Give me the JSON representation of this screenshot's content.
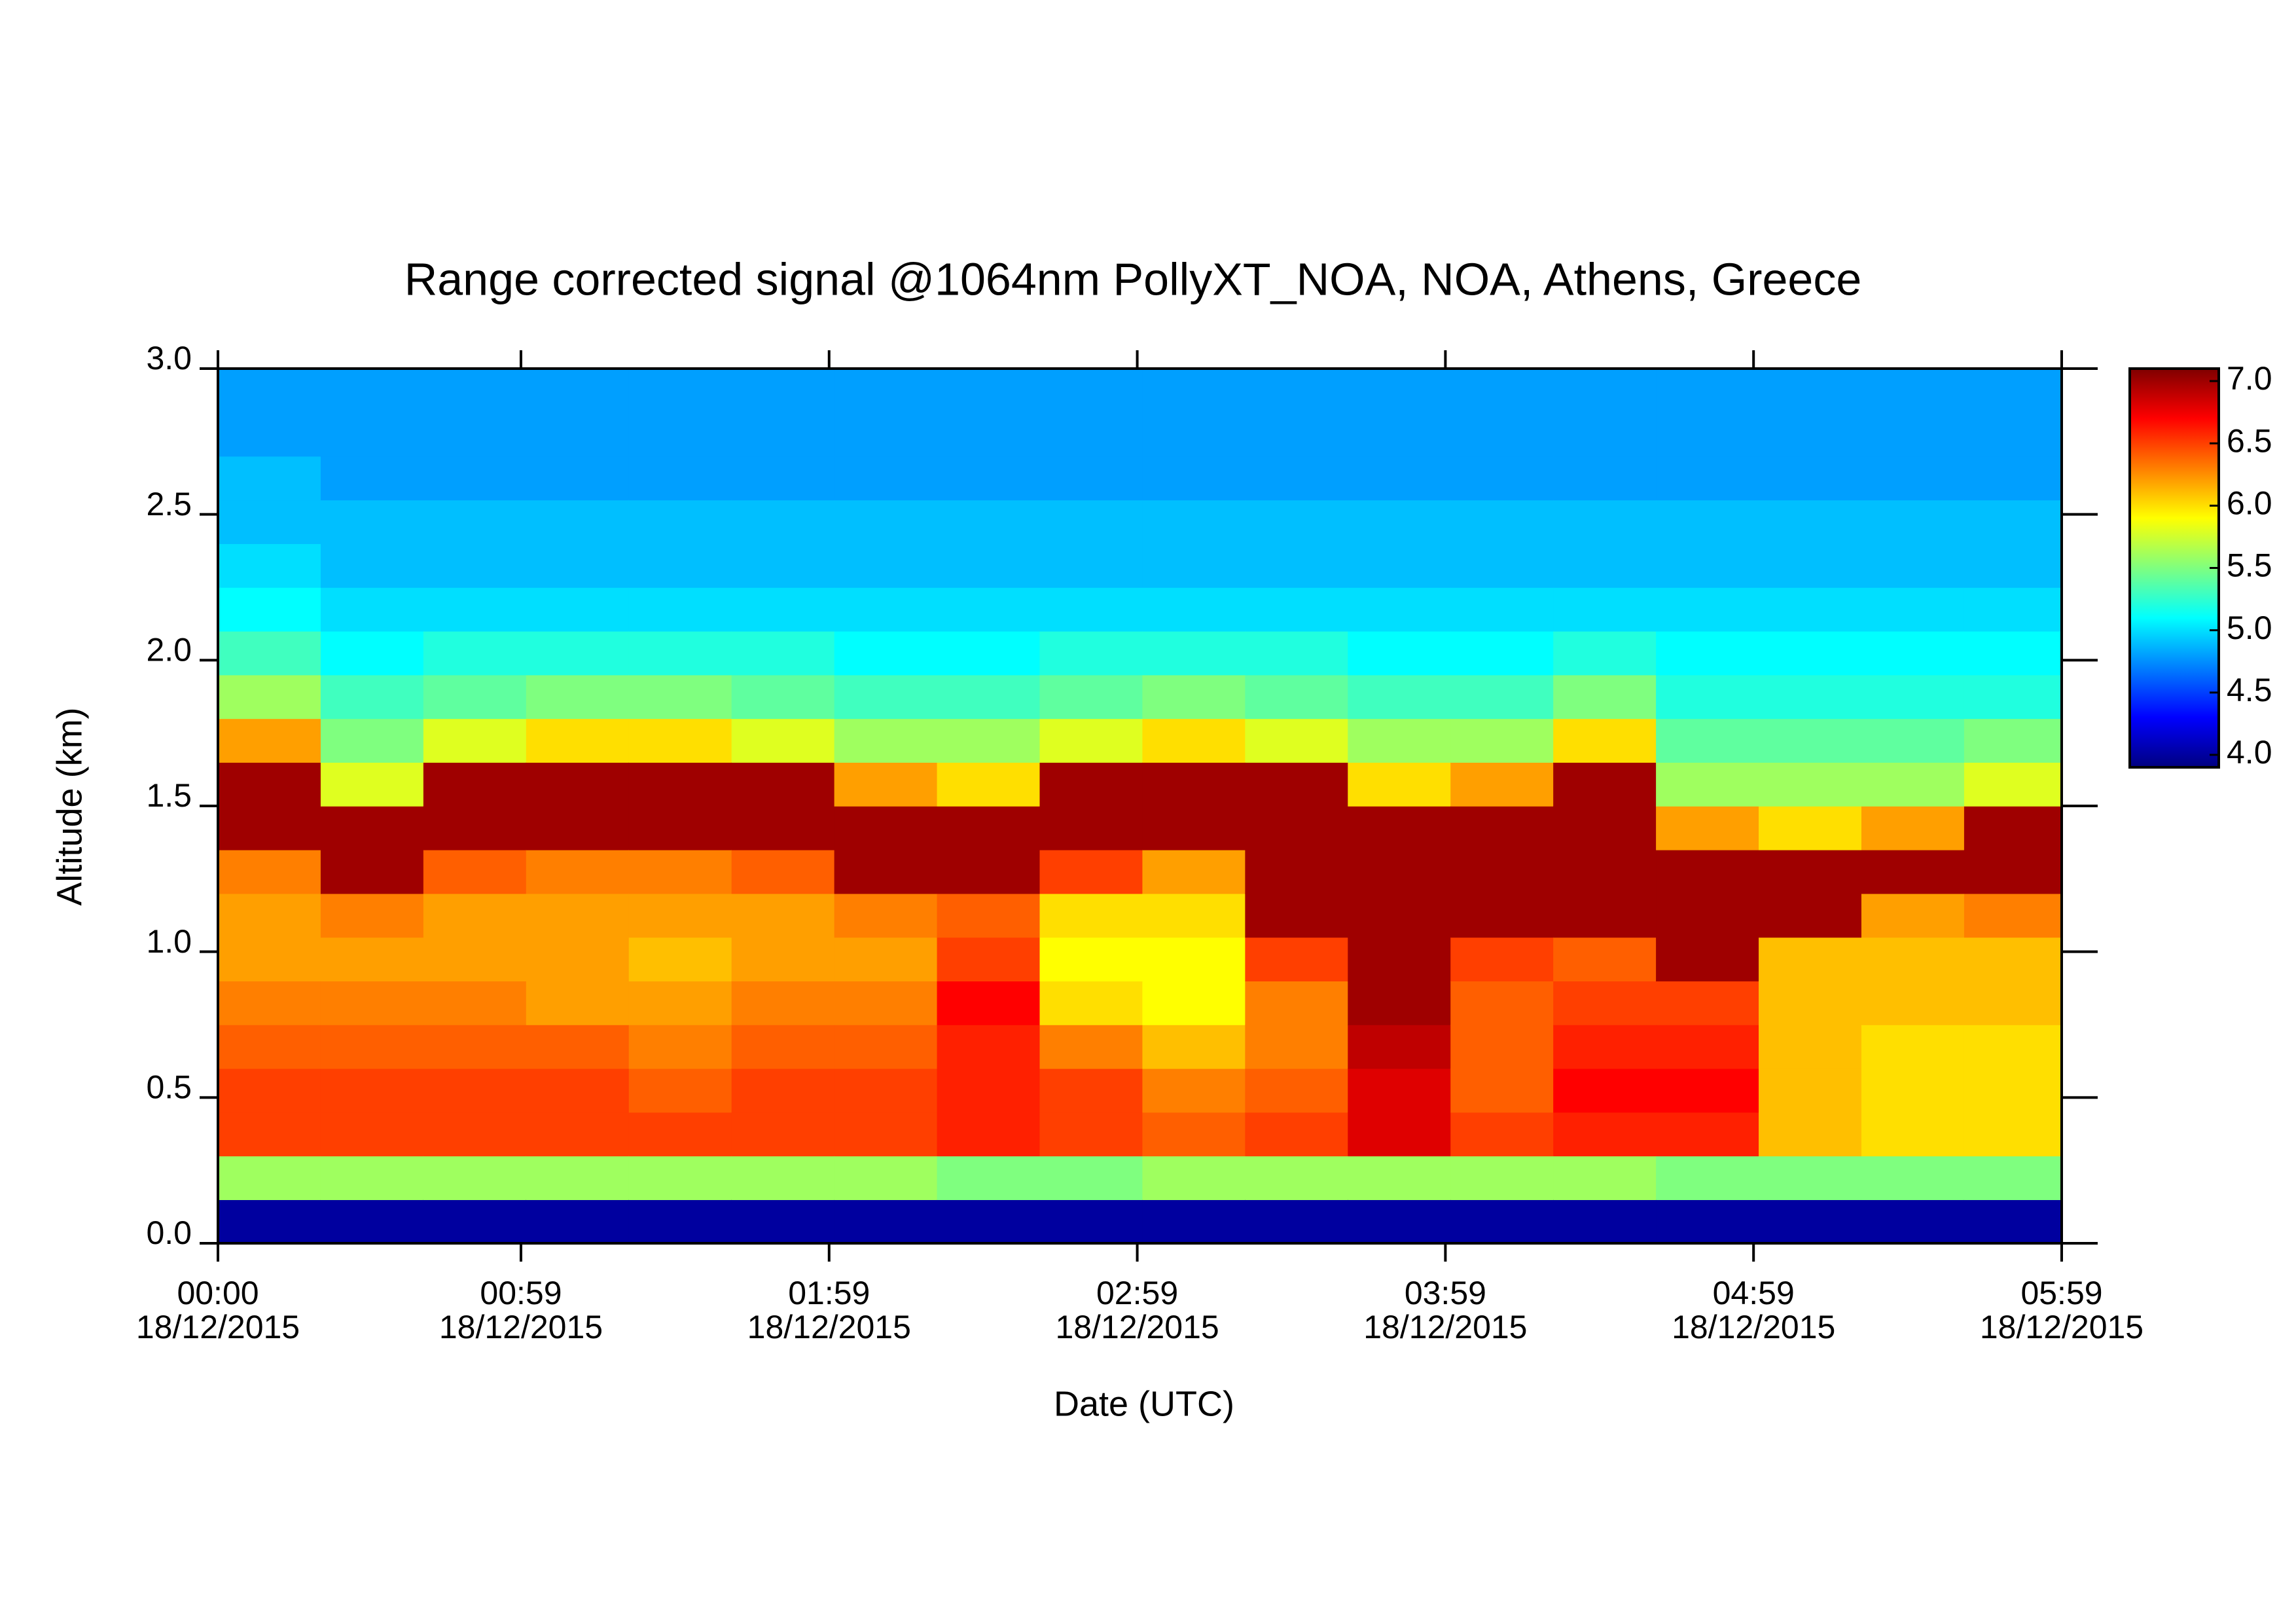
{
  "chart_data": {
    "type": "heatmap",
    "title": "Range corrected signal @1064nm  PollyXT_NOA, NOA, Athens, Greece",
    "x_label": "Date (UTC)",
    "y_label": "Altitude (km)",
    "x": [
      "00:00",
      "00:20",
      "00:40",
      "01:00",
      "01:20",
      "01:40",
      "02:00",
      "02:20",
      "02:40",
      "03:00",
      "03:20",
      "03:40",
      "04:00",
      "04:20",
      "04:40",
      "05:00",
      "05:20",
      "05:40"
    ],
    "y": [
      0,
      0.15,
      0.3,
      0.45,
      0.6,
      0.75,
      0.9,
      1.05,
      1.2,
      1.35,
      1.5,
      1.65,
      1.8,
      1.95,
      2.1,
      2.25,
      2.4,
      2.55,
      2.7,
      2.85
    ],
    "values": [
      [
        4.0,
        5.6,
        6.5,
        6.5,
        6.4,
        6.3,
        6.2,
        6.2,
        6.3,
        7.0,
        7.0,
        6.2,
        5.6,
        5.3,
        5.1,
        5.0,
        4.9,
        4.9,
        4.8,
        4.8
      ],
      [
        4.0,
        5.6,
        6.5,
        6.5,
        6.4,
        6.3,
        6.2,
        6.3,
        7.0,
        7.0,
        5.8,
        5.5,
        5.3,
        5.1,
        5.0,
        4.9,
        4.9,
        4.8,
        4.8,
        4.8
      ],
      [
        4.0,
        5.6,
        6.5,
        6.5,
        6.4,
        6.3,
        6.2,
        6.2,
        6.4,
        7.0,
        7.0,
        5.8,
        5.4,
        5.2,
        5.0,
        4.9,
        4.9,
        4.8,
        4.8,
        4.8
      ],
      [
        4.0,
        5.6,
        6.5,
        6.5,
        6.4,
        6.2,
        6.2,
        6.2,
        6.3,
        7.0,
        7.0,
        6.0,
        5.5,
        5.2,
        5.0,
        4.9,
        4.9,
        4.8,
        4.8,
        4.8
      ],
      [
        4.0,
        5.6,
        6.5,
        6.4,
        6.3,
        6.2,
        6.1,
        6.2,
        6.3,
        7.0,
        7.0,
        6.0,
        5.5,
        5.2,
        5.0,
        4.9,
        4.9,
        4.8,
        4.8,
        4.8
      ],
      [
        4.0,
        5.6,
        6.5,
        6.5,
        6.4,
        6.3,
        6.2,
        6.2,
        6.4,
        7.0,
        7.0,
        5.8,
        5.4,
        5.2,
        5.0,
        4.9,
        4.9,
        4.8,
        4.8,
        4.8
      ],
      [
        4.0,
        5.6,
        6.5,
        6.5,
        6.4,
        6.3,
        6.2,
        6.3,
        7.0,
        7.0,
        6.2,
        5.6,
        5.3,
        5.1,
        5.0,
        4.9,
        4.9,
        4.8,
        4.8,
        4.8
      ],
      [
        4.0,
        5.5,
        6.6,
        6.6,
        6.6,
        6.7,
        6.5,
        6.4,
        7.0,
        7.0,
        6.0,
        5.6,
        5.3,
        5.1,
        5.0,
        4.9,
        4.9,
        4.8,
        4.8,
        4.8
      ],
      [
        4.0,
        5.5,
        6.5,
        6.5,
        6.3,
        6.0,
        5.9,
        6.0,
        6.5,
        7.0,
        7.0,
        5.8,
        5.4,
        5.2,
        5.0,
        4.9,
        4.9,
        4.8,
        4.8,
        4.8
      ],
      [
        4.0,
        5.6,
        6.4,
        6.3,
        6.1,
        5.9,
        5.9,
        6.0,
        6.2,
        7.0,
        7.0,
        6.0,
        5.5,
        5.2,
        5.0,
        4.9,
        4.9,
        4.8,
        4.8,
        4.8
      ],
      [
        4.0,
        5.6,
        6.5,
        6.4,
        6.3,
        6.3,
        6.5,
        7.0,
        7.0,
        7.0,
        7.0,
        5.8,
        5.4,
        5.2,
        5.0,
        4.9,
        4.9,
        4.8,
        4.8,
        4.8
      ],
      [
        4.0,
        5.6,
        6.8,
        6.8,
        6.9,
        7.0,
        7.0,
        7.0,
        7.0,
        7.0,
        6.0,
        5.6,
        5.3,
        5.1,
        5.0,
        4.9,
        4.9,
        4.8,
        4.8,
        4.8
      ],
      [
        4.0,
        5.6,
        6.5,
        6.4,
        6.4,
        6.4,
        6.5,
        7.0,
        7.0,
        7.0,
        6.2,
        5.6,
        5.3,
        5.1,
        5.0,
        4.9,
        4.9,
        4.8,
        4.8,
        4.8
      ],
      [
        4.0,
        5.6,
        6.6,
        6.7,
        6.6,
        6.5,
        6.4,
        7.0,
        7.0,
        7.0,
        7.0,
        6.0,
        5.5,
        5.2,
        5.0,
        4.9,
        4.9,
        4.8,
        4.8,
        4.8
      ],
      [
        4.0,
        5.5,
        6.6,
        6.7,
        6.6,
        6.5,
        7.0,
        7.0,
        7.0,
        6.2,
        5.6,
        5.4,
        5.2,
        5.1,
        5.0,
        4.9,
        4.9,
        4.8,
        4.8,
        4.8
      ],
      [
        4.0,
        5.5,
        6.1,
        6.1,
        6.1,
        6.1,
        6.1,
        7.0,
        7.0,
        6.0,
        5.6,
        5.4,
        5.2,
        5.1,
        5.0,
        4.9,
        4.9,
        4.8,
        4.8,
        4.8
      ],
      [
        4.0,
        5.5,
        6.0,
        6.0,
        6.0,
        6.1,
        6.1,
        6.2,
        7.0,
        6.2,
        5.6,
        5.4,
        5.2,
        5.1,
        5.0,
        4.9,
        4.9,
        4.8,
        4.8,
        4.8
      ],
      [
        4.0,
        5.5,
        6.0,
        6.0,
        6.0,
        6.1,
        6.1,
        6.3,
        7.0,
        7.0,
        5.8,
        5.5,
        5.2,
        5.1,
        5.0,
        4.9,
        4.9,
        4.8,
        4.8,
        4.8
      ]
    ],
    "xlim": [
      "00:00",
      "05:59"
    ],
    "xticks": [
      {
        "value": "00:00",
        "label": [
          "00:00",
          "18/12/2015"
        ]
      },
      {
        "value": "00:59",
        "label": [
          "00:59",
          "18/12/2015"
        ]
      },
      {
        "value": "01:59",
        "label": [
          "01:59",
          "18/12/2015"
        ]
      },
      {
        "value": "02:59",
        "label": [
          "02:59",
          "18/12/2015"
        ]
      },
      {
        "value": "03:59",
        "label": [
          "03:59",
          "18/12/2015"
        ]
      },
      {
        "value": "04:59",
        "label": [
          "04:59",
          "18/12/2015"
        ]
      },
      {
        "value": "05:59",
        "label": [
          "05:59",
          "18/12/2015"
        ]
      }
    ],
    "ylim": [
      0,
      3
    ],
    "yticks": [
      {
        "value": 0,
        "label": "0.0"
      },
      {
        "value": 0.5,
        "label": "0.5"
      },
      {
        "value": 1,
        "label": "1.0"
      },
      {
        "value": 1.5,
        "label": "1.5"
      },
      {
        "value": 2,
        "label": "2.0"
      },
      {
        "value": 2.5,
        "label": "2.5"
      },
      {
        "value": 3,
        "label": "3.0"
      }
    ],
    "clim": [
      3.9,
      7.1
    ],
    "cticks": [
      {
        "value": 4,
        "label": "4.0"
      },
      {
        "value": 4.5,
        "label": "4.5"
      },
      {
        "value": 5,
        "label": "5.0"
      },
      {
        "value": 5.5,
        "label": "5.5"
      },
      {
        "value": 6,
        "label": "6.0"
      },
      {
        "value": 6.5,
        "label": "6.5"
      },
      {
        "value": 7,
        "label": "7.0"
      }
    ],
    "colormap": [
      "#00007f",
      "#0000ff",
      "#007fff",
      "#00ffff",
      "#7fff7f",
      "#ffff00",
      "#ff7f00",
      "#ff0000",
      "#7f0000"
    ]
  }
}
